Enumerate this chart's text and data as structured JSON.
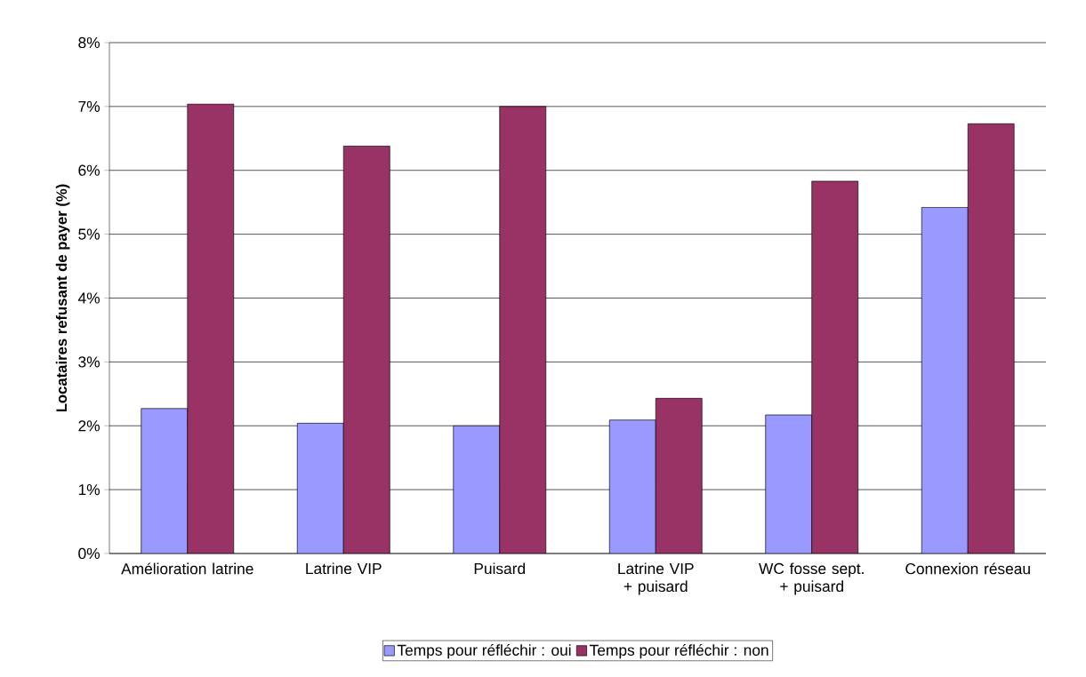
{
  "chart_data": {
    "type": "bar",
    "ylabel": "**Locataires refusant de payer (%)**",
    "categories": [
      "Amélioration latrine",
      "Latrine VIP",
      "Puisard",
      "Latrine VIP + puisard",
      "WC fosse sept. + puisard",
      "Connexion réseau"
    ],
    "series": [
      {
        "name": "Temps pour réfléchir : oui",
        "color": "#9999ff",
        "values": [
          2.27,
          2.04,
          2.0,
          2.09,
          2.17,
          5.42
        ]
      },
      {
        "name": "Temps pour réfléchir : non",
        "color": "#993366",
        "values": [
          7.04,
          6.38,
          7.0,
          2.43,
          5.83,
          6.73
        ]
      }
    ],
    "ylim": [
      0,
      8
    ],
    "yticks": [
      {
        "value": 0,
        "label": "0%"
      },
      {
        "value": 1,
        "label": "1%"
      },
      {
        "value": 2,
        "label": "2%"
      },
      {
        "value": 3,
        "label": "3%"
      },
      {
        "value": 4,
        "label": "4%"
      },
      {
        "value": 5,
        "label": "5%"
      },
      {
        "value": 6,
        "label": "6%"
      },
      {
        "value": 7,
        "label": "7%"
      },
      {
        "value": 8,
        "label": "8%"
      }
    ],
    "grid": "y",
    "legend": "bottom"
  }
}
